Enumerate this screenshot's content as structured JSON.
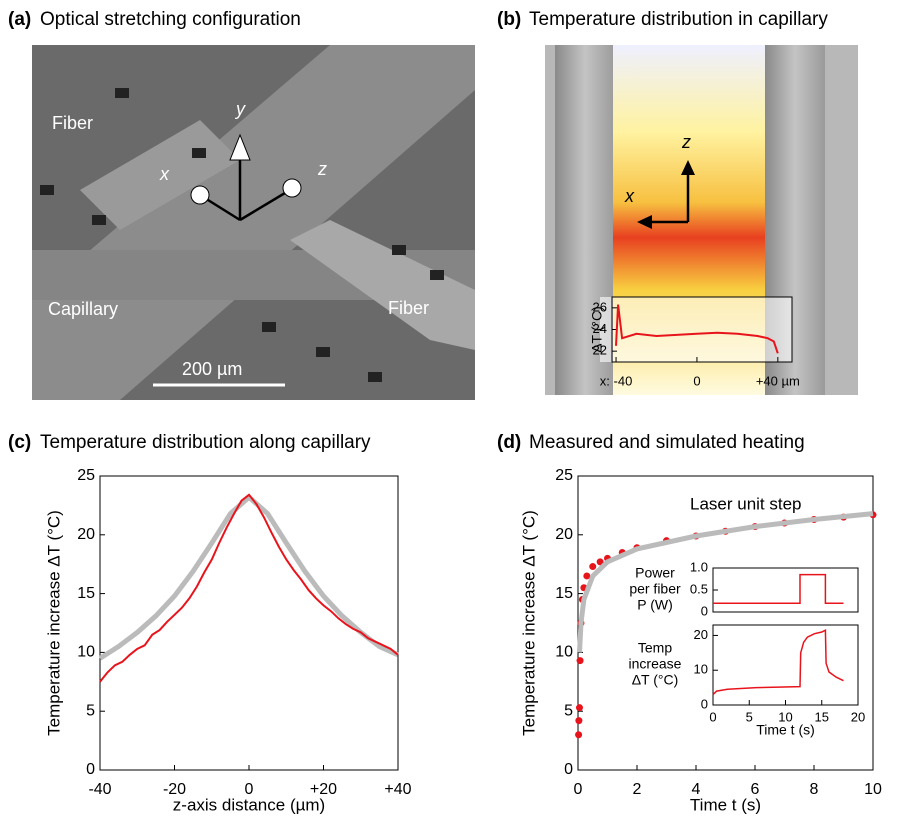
{
  "images": {
    "a": {
      "label": "(a)",
      "title": "Optical stretching configuration",
      "annotations": [
        "Fiber",
        "Fiber",
        "Capillary",
        "x",
        "y",
        "z",
        "200 µm"
      ]
    },
    "b": {
      "label": "(b)",
      "title": "Temperature distribution in capillary",
      "annotations": [
        "z",
        "x"
      ]
    }
  },
  "chart_data": [
    {
      "type": "line",
      "ylabel": "ΔT (°C)",
      "xlim": [
        -42,
        47
      ],
      "xticks": [
        {
          "value": -40,
          "label": "x: -40"
        },
        0,
        {
          "value": 40,
          "label": "+40 µm"
        }
      ],
      "ylim": [
        21,
        27
      ],
      "yticks": [
        22,
        24,
        26
      ],
      "series": [
        {
          "color": "#e8141c",
          "mode": "line",
          "x": [
            -40,
            -39,
            -37,
            -30,
            -20,
            -10,
            0,
            10,
            20,
            30,
            35,
            38,
            40
          ],
          "values": [
            22.5,
            26.3,
            23.2,
            23.6,
            23.4,
            23.5,
            23.6,
            23.7,
            23.6,
            23.4,
            23.2,
            22.9,
            21.8
          ]
        }
      ]
    },
    {
      "type": "line",
      "label": "(c)",
      "title": "Temperature distribution along capillary",
      "xlabel": "z-axis distance (µm)",
      "ylabel": "Temperature increase ΔT (°C)",
      "xlim": [
        -40,
        40
      ],
      "xticks": [
        -40,
        -20,
        0,
        {
          "value": 20,
          "label": "+20"
        },
        {
          "value": 40,
          "label": "+40"
        }
      ],
      "ylim": [
        0,
        25
      ],
      "yticks": [
        0,
        5,
        10,
        15,
        20,
        25
      ],
      "series": [
        {
          "color": "#bbbbbb",
          "mode": "line",
          "x": [
            -40,
            -35,
            -30,
            -25,
            -20,
            -15,
            -10,
            -5,
            0,
            5,
            10,
            15,
            20,
            25,
            30,
            35,
            40
          ],
          "values": [
            9.5,
            10.5,
            11.7,
            13.1,
            14.8,
            16.9,
            19.3,
            21.8,
            23.2,
            21.8,
            19.3,
            16.9,
            14.8,
            13.1,
            11.7,
            10.5,
            9.8
          ]
        },
        {
          "color": "#e8141c",
          "mode": "line",
          "x": [
            -40,
            -38,
            -36,
            -34,
            -32,
            -30,
            -28,
            -26,
            -24,
            -22,
            -20,
            -18,
            -16,
            -14,
            -12,
            -10,
            -8,
            -6,
            -4,
            -2,
            0,
            2,
            4,
            6,
            8,
            10,
            12,
            14,
            16,
            18,
            20,
            22,
            24,
            26,
            28,
            30,
            32,
            34,
            36,
            38,
            40
          ],
          "values": [
            7.5,
            8.3,
            8.9,
            9.2,
            9.8,
            10.3,
            10.6,
            11.5,
            11.9,
            12.6,
            13.2,
            13.8,
            14.6,
            15.6,
            16.8,
            17.9,
            19.3,
            20.6,
            21.8,
            22.9,
            23.4,
            22.6,
            21.5,
            20.2,
            19.0,
            17.9,
            17.0,
            16.2,
            15.3,
            14.6,
            14.0,
            13.5,
            12.9,
            12.4,
            12.0,
            11.7,
            11.2,
            10.9,
            10.6,
            10.3,
            9.8
          ]
        }
      ]
    },
    {
      "type": "line",
      "label": "(d)",
      "title": "Measured and simulated heating",
      "xlabel": "Time t (s)",
      "ylabel": "Temperature increase ΔT (°C)",
      "annotation": "Laser unit step",
      "xlim": [
        0,
        10
      ],
      "xticks": [
        0,
        2,
        4,
        6,
        8,
        10
      ],
      "ylim": [
        0,
        25
      ],
      "yticks": [
        0,
        5,
        10,
        15,
        20,
        25
      ],
      "series": [
        {
          "color": "#e8141c",
          "mode": "markers",
          "x": [
            0.02,
            0.03,
            0.05,
            0.07,
            0.1,
            0.15,
            0.2,
            0.3,
            0.5,
            0.75,
            1,
            1.5,
            2,
            3,
            4,
            5,
            6,
            7,
            8,
            9,
            10
          ],
          "values": [
            3,
            4.2,
            5.3,
            9.3,
            12.5,
            14.5,
            15.5,
            16.5,
            17.3,
            17.7,
            18,
            18.5,
            18.9,
            19.5,
            19.9,
            20.3,
            20.7,
            21,
            21.3,
            21.5,
            21.7
          ]
        },
        {
          "color": "#bbbbbb",
          "mode": "line",
          "x": [
            0.05,
            0.1,
            0.2,
            0.5,
            1,
            2,
            4,
            6,
            8,
            10
          ],
          "values": [
            10,
            12.5,
            14.5,
            16.5,
            17.7,
            18.8,
            19.9,
            20.7,
            21.3,
            21.8
          ]
        }
      ]
    },
    {
      "type": "line",
      "ylabel": [
        "Power",
        "per fiber",
        "P (W)"
      ],
      "xlim": [
        0,
        20
      ],
      "ylim": [
        0,
        1
      ],
      "yticks": [
        0,
        0.5,
        {
          "value": 1,
          "label": "1.0"
        }
      ],
      "series": [
        {
          "color": "#e8141c",
          "mode": "line",
          "x": [
            0,
            12,
            12,
            15.5,
            15.5,
            18
          ],
          "values": [
            0.2,
            0.2,
            0.85,
            0.85,
            0.2,
            0.2
          ]
        }
      ]
    },
    {
      "type": "line",
      "ylabel": [
        "Temp",
        "increase",
        "ΔT (°C)"
      ],
      "xlabel": "Time t (s)",
      "xlim": [
        0,
        20
      ],
      "xticks": [
        0,
        5,
        10,
        15,
        20
      ],
      "ylim": [
        0,
        23
      ],
      "yticks": [
        0,
        10,
        20
      ],
      "series": [
        {
          "color": "#e8141c",
          "mode": "line",
          "x": [
            0,
            0.5,
            2,
            6,
            12,
            12.1,
            12.5,
            13,
            14,
            15,
            15.5,
            15.6,
            16,
            17,
            18
          ],
          "values": [
            3,
            4,
            4.5,
            5,
            5.3,
            15,
            18,
            19.5,
            20.5,
            21,
            21.5,
            12,
            9.5,
            8,
            7
          ]
        }
      ]
    }
  ]
}
